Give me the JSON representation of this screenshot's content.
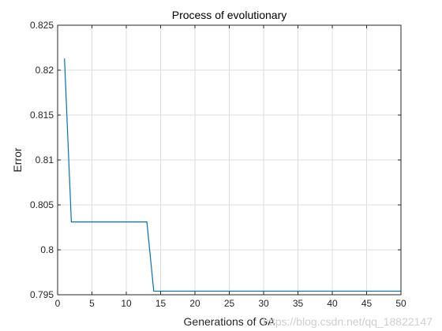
{
  "chart_data": {
    "type": "line",
    "title": "Process of evolutionary",
    "xlabel": "Generations of GA",
    "ylabel": "Error",
    "xlim": [
      0,
      50
    ],
    "ylim": [
      0.795,
      0.825
    ],
    "xticks": [
      0,
      5,
      10,
      15,
      20,
      25,
      30,
      35,
      40,
      45,
      50
    ],
    "yticks": [
      0.795,
      0.8,
      0.805,
      0.81,
      0.815,
      0.82,
      0.825
    ],
    "xtick_labels": [
      "0",
      "5",
      "10",
      "15",
      "20",
      "25",
      "30",
      "35",
      "40",
      "45",
      "50"
    ],
    "ytick_labels": [
      "0.795",
      "0.8",
      "0.805",
      "0.81",
      "0.815",
      "0.82",
      "0.825"
    ],
    "grid": true,
    "series": [
      {
        "color": "#0072bd",
        "x": [
          1,
          2,
          3,
          4,
          5,
          6,
          7,
          8,
          9,
          10,
          11,
          12,
          13,
          14,
          15,
          16,
          17,
          18,
          19,
          20,
          21,
          22,
          23,
          24,
          25,
          26,
          27,
          28,
          29,
          30,
          31,
          32,
          33,
          34,
          35,
          36,
          37,
          38,
          39,
          40,
          41,
          42,
          43,
          44,
          45,
          46,
          47,
          48,
          49,
          50
        ],
        "y": [
          0.8213,
          0.8031,
          0.8031,
          0.8031,
          0.8031,
          0.8031,
          0.8031,
          0.8031,
          0.8031,
          0.8031,
          0.8031,
          0.8031,
          0.8031,
          0.7954,
          0.7954,
          0.7954,
          0.7954,
          0.7954,
          0.7954,
          0.7954,
          0.7954,
          0.7954,
          0.7954,
          0.7954,
          0.7954,
          0.7954,
          0.7954,
          0.7954,
          0.7954,
          0.7954,
          0.7954,
          0.7954,
          0.7954,
          0.7954,
          0.7954,
          0.7954,
          0.7954,
          0.7954,
          0.7954,
          0.7954,
          0.7954,
          0.7954,
          0.7954,
          0.7954,
          0.7954,
          0.7954,
          0.7954,
          0.7954,
          0.7954,
          0.7954
        ]
      }
    ]
  },
  "watermark": "https://blog.csdn.net/qq_18822147"
}
